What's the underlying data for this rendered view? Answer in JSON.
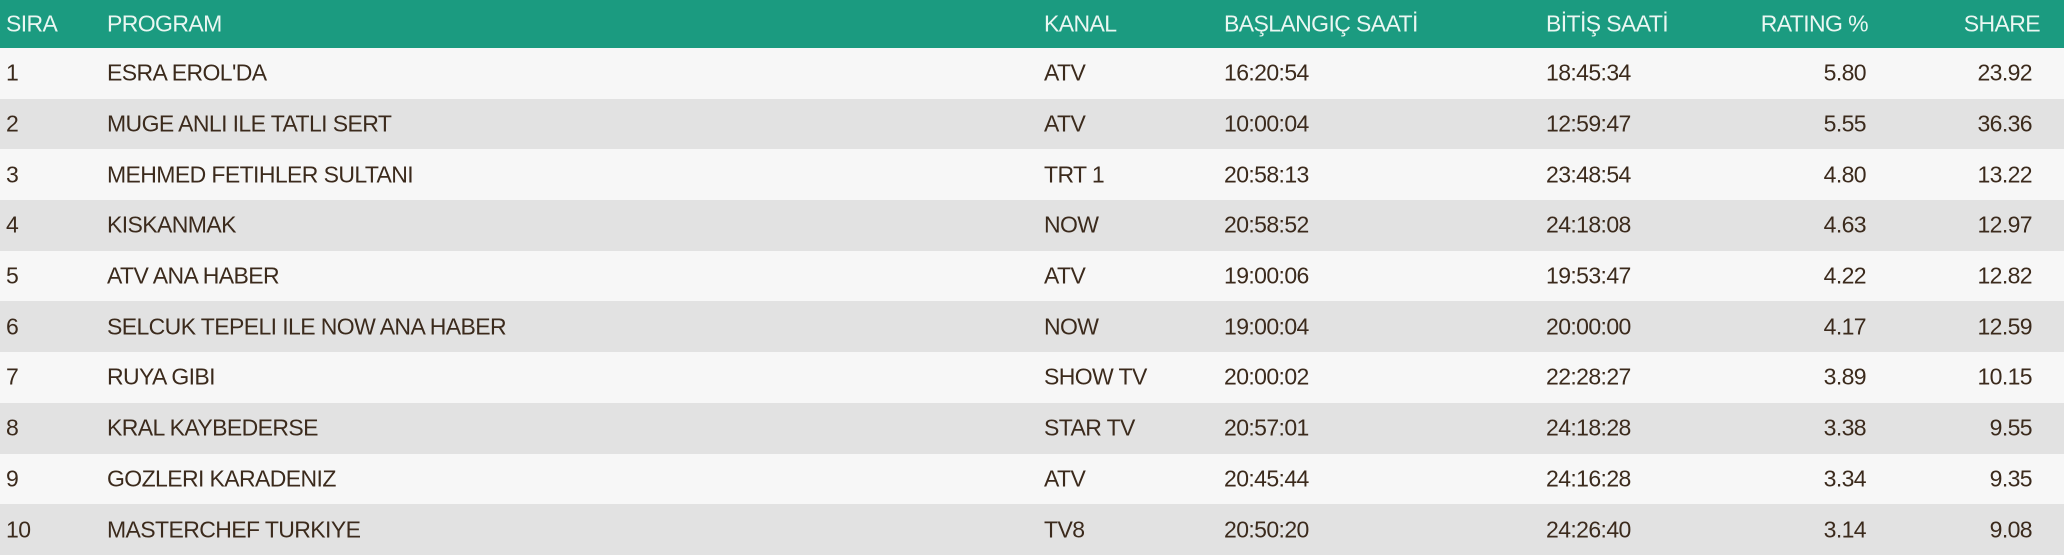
{
  "colors": {
    "header_bg": "#1b9b80",
    "header_text": "#eaf7f2",
    "row_odd": "#f7f7f7",
    "row_even": "#e2e2e2",
    "text": "#3b2a1c"
  },
  "headers": {
    "sira": "SIRA",
    "program": "PROGRAM",
    "kanal": "KANAL",
    "baslangic": "BAŞLANGIÇ SAATİ",
    "bitis": "BİTİŞ SAATİ",
    "rating": "RATING %",
    "share": "SHARE"
  },
  "rows": [
    {
      "sira": "1",
      "program": "ESRA EROL'DA",
      "kanal": "ATV",
      "baslangic": "16:20:54",
      "bitis": "18:45:34",
      "rating": "5.80",
      "share": "23.92"
    },
    {
      "sira": "2",
      "program": "MUGE ANLI ILE TATLI SERT",
      "kanal": "ATV",
      "baslangic": "10:00:04",
      "bitis": "12:59:47",
      "rating": "5.55",
      "share": "36.36"
    },
    {
      "sira": "3",
      "program": "MEHMED FETIHLER SULTANI",
      "kanal": "TRT 1",
      "baslangic": "20:58:13",
      "bitis": "23:48:54",
      "rating": "4.80",
      "share": "13.22"
    },
    {
      "sira": "4",
      "program": "KISKANMAK",
      "kanal": "NOW",
      "baslangic": "20:58:52",
      "bitis": "24:18:08",
      "rating": "4.63",
      "share": "12.97"
    },
    {
      "sira": "5",
      "program": "ATV ANA HABER",
      "kanal": "ATV",
      "baslangic": "19:00:06",
      "bitis": "19:53:47",
      "rating": "4.22",
      "share": "12.82"
    },
    {
      "sira": "6",
      "program": "SELCUK TEPELI ILE NOW ANA HABER",
      "kanal": "NOW",
      "baslangic": "19:00:04",
      "bitis": "20:00:00",
      "rating": "4.17",
      "share": "12.59"
    },
    {
      "sira": "7",
      "program": "RUYA GIBI",
      "kanal": "SHOW TV",
      "baslangic": "20:00:02",
      "bitis": "22:28:27",
      "rating": "3.89",
      "share": "10.15"
    },
    {
      "sira": "8",
      "program": "KRAL KAYBEDERSE",
      "kanal": "STAR TV",
      "baslangic": "20:57:01",
      "bitis": "24:18:28",
      "rating": "3.38",
      "share": "9.55"
    },
    {
      "sira": "9",
      "program": "GOZLERI KARADENIZ",
      "kanal": "ATV",
      "baslangic": "20:45:44",
      "bitis": "24:16:28",
      "rating": "3.34",
      "share": "9.35"
    },
    {
      "sira": "10",
      "program": "MASTERCHEF TURKIYE",
      "kanal": "TV8",
      "baslangic": "20:50:20",
      "bitis": "24:26:40",
      "rating": "3.14",
      "share": "9.08"
    }
  ]
}
